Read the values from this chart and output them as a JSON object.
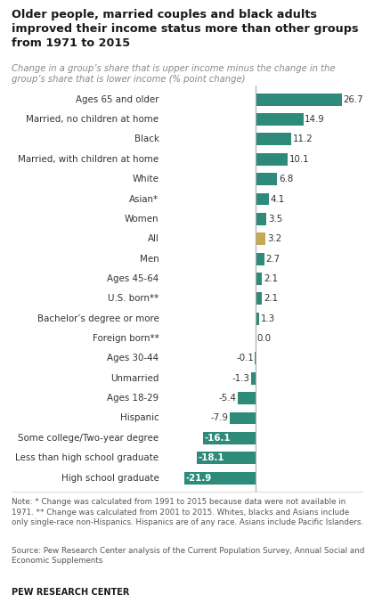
{
  "title": "Older people, married couples and black adults\nimproved their income status more than other groups\nfrom 1971 to 2015",
  "subtitle": "Change in a group’s share that is upper income minus the change in the\ngroup’s share that is lower income (% point change)",
  "categories": [
    "Ages 65 and older",
    "Married, no children at home",
    "Black",
    "Married, with children at home",
    "White",
    "Asian*",
    "Women",
    "All",
    "Men",
    "Ages 45-64",
    "U.S. born**",
    "Bachelor’s degree or more",
    "Foreign born**",
    "Ages 30-44",
    "Unmarried",
    "Ages 18-29",
    "Hispanic",
    "Some college/Two-year degree",
    "Less than high school graduate",
    "High school graduate"
  ],
  "values": [
    26.7,
    14.9,
    11.2,
    10.1,
    6.8,
    4.1,
    3.5,
    3.2,
    2.7,
    2.1,
    2.1,
    1.3,
    0.0,
    -0.1,
    -1.3,
    -5.4,
    -7.9,
    -16.1,
    -18.1,
    -21.9
  ],
  "bar_color_default": "#2e8b7a",
  "bar_color_all": "#c8a951",
  "note": "Note: * Change was calculated from 1991 to 2015 because data were not available in\n1971. ** Change was calculated from 2001 to 2015. Whites, blacks and Asians include\nonly single-race non-Hispanics. Hispanics are of any race. Asians include Pacific Islanders.",
  "source": "Source: Pew Research Center analysis of the Current Population Survey, Annual Social and\nEconomic Supplements",
  "branding": "PEW RESEARCH CENTER",
  "xlim": [
    -28,
    32
  ]
}
